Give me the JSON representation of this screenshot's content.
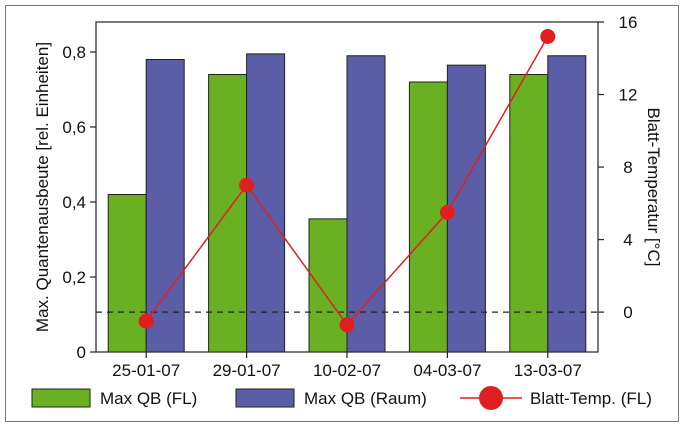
{
  "chart_data": {
    "type": "bar",
    "categories": [
      "25-01-07",
      "29-01-07",
      "10-02-07",
      "04-03-07",
      "13-03-07"
    ],
    "series": [
      {
        "name": "Max QB (FL)",
        "kind": "bar",
        "axis": "left",
        "color": "#6ab023",
        "values": [
          0.42,
          0.74,
          0.355,
          0.72,
          0.74
        ]
      },
      {
        "name": "Max QB (Raum)",
        "kind": "bar",
        "axis": "left",
        "color": "#5b5ea6",
        "values": [
          0.78,
          0.795,
          0.79,
          0.765,
          0.79
        ]
      },
      {
        "name": "Blatt-Temp. (FL)",
        "kind": "line",
        "axis": "right",
        "color": "#e02020",
        "values": [
          -0.5,
          7.0,
          -0.7,
          5.5,
          15.2
        ]
      }
    ],
    "ylabel": "Max. Quantenausbeute [rel. Einheiten]",
    "y2label": "Blatt-Temperatur [°C]",
    "ylim": [
      0,
      0.88
    ],
    "yticks": [
      "0",
      "0,2",
      "0,4",
      "0,6",
      "0,8"
    ],
    "y2lim": [
      -2.2,
      16
    ],
    "y2ticks": [
      "0",
      "4",
      "8",
      "12",
      "16"
    ],
    "reference_line": {
      "axis": "right",
      "value": 0,
      "style": "dashed"
    },
    "grid": false,
    "legend_position": "bottom"
  }
}
